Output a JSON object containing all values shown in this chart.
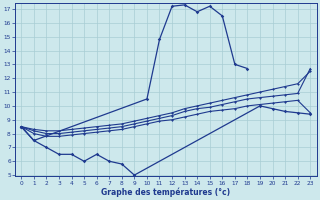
{
  "xlabel": "Graphe des températures (°c)",
  "bg_color": "#cde8ec",
  "line_color": "#1f3a8f",
  "grid_color": "#a8cdd4",
  "axis_color": "#1f3a8f",
  "ylim_min": 5,
  "ylim_max": 17.4,
  "xlim_min": -0.5,
  "xlim_max": 23.5,
  "yticks": [
    5,
    6,
    7,
    8,
    9,
    10,
    11,
    12,
    13,
    14,
    15,
    16,
    17
  ],
  "xticks": [
    0,
    1,
    2,
    3,
    4,
    5,
    6,
    7,
    8,
    9,
    10,
    11,
    12,
    13,
    14,
    15,
    16,
    17,
    18,
    19,
    20,
    21,
    22,
    23
  ],
  "hours": [
    0,
    1,
    2,
    3,
    4,
    5,
    6,
    7,
    8,
    9,
    10,
    11,
    12,
    13,
    14,
    15,
    16,
    17,
    18,
    19,
    20,
    21,
    22,
    23
  ],
  "temp_max": [
    8.5,
    7.5,
    null,
    null,
    null,
    null,
    null,
    null,
    null,
    null,
    10.5,
    14.8,
    17.2,
    17.3,
    16.8,
    17.2,
    16.5,
    13.0,
    12.7,
    null,
    null,
    null,
    null,
    null
  ],
  "temp_min": [
    8.5,
    7.5,
    7.0,
    6.5,
    6.5,
    6.0,
    6.5,
    6.0,
    5.8,
    5.0,
    null,
    null,
    null,
    null,
    null,
    null,
    null,
    null,
    null,
    10.0,
    9.8,
    9.6,
    9.5,
    9.4
  ],
  "line_a": [
    8.5,
    8.3,
    8.2,
    8.2,
    8.3,
    8.4,
    8.5,
    8.6,
    8.7,
    8.9,
    9.1,
    9.3,
    9.5,
    9.8,
    10.0,
    10.2,
    10.4,
    10.6,
    10.8,
    11.0,
    11.2,
    11.4,
    11.6,
    12.5
  ],
  "line_b": [
    8.5,
    8.2,
    8.0,
    8.0,
    8.1,
    8.2,
    8.3,
    8.4,
    8.5,
    8.7,
    8.9,
    9.1,
    9.3,
    9.6,
    9.8,
    9.9,
    10.1,
    10.3,
    10.5,
    10.6,
    10.7,
    10.8,
    10.9,
    12.7
  ],
  "line_c": [
    8.5,
    8.0,
    7.8,
    7.8,
    7.9,
    8.0,
    8.1,
    8.2,
    8.3,
    8.5,
    8.7,
    8.9,
    9.0,
    9.2,
    9.4,
    9.6,
    9.7,
    9.8,
    10.0,
    10.1,
    10.2,
    10.3,
    10.4,
    9.5
  ]
}
